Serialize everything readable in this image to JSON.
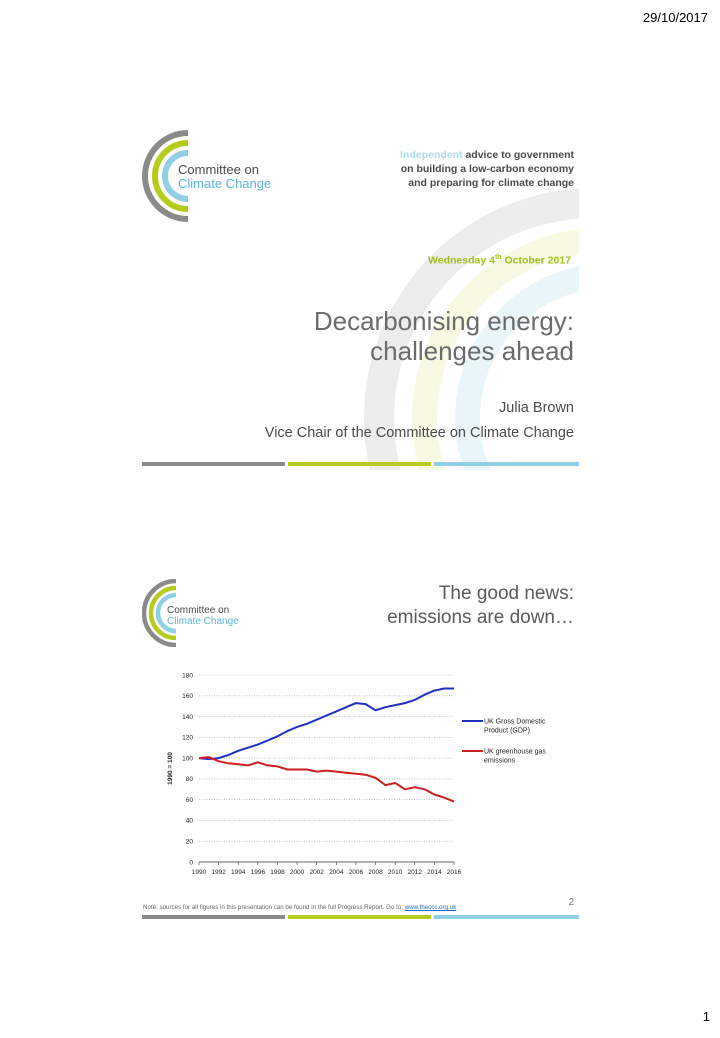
{
  "page": {
    "date": "29/10/2017",
    "number": "1"
  },
  "slide1": {
    "logo": {
      "line1": "Committee on",
      "line2": "Climate Change"
    },
    "tagline": {
      "accent": "Independent",
      "rest1": " advice to government",
      "line2": "on building a low-carbon economy",
      "line3": "and preparing for climate change"
    },
    "date": {
      "prefix": "Wednesday 4",
      "sup": "th",
      "suffix": " October 2017"
    },
    "title": {
      "line1": "Decarbonising energy:",
      "line2": "challenges ahead"
    },
    "presenter": "Julia Brown",
    "role": "Vice Chair of the Committee on Climate Change"
  },
  "slide2": {
    "logo": {
      "line1": "Committee on",
      "line2": "Climate Change"
    },
    "title": {
      "line1": "The good news:",
      "line2": "emissions are down…"
    },
    "slide_number": "2",
    "footnote": {
      "text": "Note: sources for all figures in this presentation can be found in the full Progress Report. Go to:",
      "link": "www.theccc.org.uk"
    }
  },
  "colors": {
    "grey": "#8a8a8a",
    "green": "#b5cc1c",
    "blue": "#8fd0e4",
    "gdp": "#1f2fbf",
    "emissions": "#cc1f1f"
  },
  "chart_data": {
    "type": "line",
    "ylabel": "1990 = 100",
    "xlabel": "",
    "ylim": [
      0,
      180
    ],
    "yticks": [
      0,
      20,
      40,
      60,
      80,
      100,
      120,
      140,
      160,
      180
    ],
    "xticks": [
      "1990",
      "1992",
      "1994",
      "1996",
      "1998",
      "2000",
      "2002",
      "2004",
      "2006",
      "2008",
      "2010",
      "2012",
      "2014",
      "2016"
    ],
    "x": [
      1990,
      1991,
      1992,
      1993,
      1994,
      1995,
      1996,
      1997,
      1998,
      1999,
      2000,
      2001,
      2002,
      2003,
      2004,
      2005,
      2006,
      2007,
      2008,
      2009,
      2010,
      2011,
      2012,
      2013,
      2014,
      2015,
      2016
    ],
    "grid": "horizontal dotted",
    "legend": "right",
    "series": [
      {
        "name": "UK Gross Domestic Product (GDP)",
        "legend_lines": [
          "UK Gross Domestic",
          "Product (GDP)"
        ],
        "color": "#1f2fbf",
        "values": [
          100,
          99,
          100,
          103,
          107,
          110,
          113,
          117,
          121,
          126,
          130,
          133,
          137,
          141,
          145,
          149,
          153,
          152,
          146,
          149,
          151,
          153,
          156,
          161,
          165,
          167,
          167
        ]
      },
      {
        "name": "UK greenhouse gas emissions",
        "legend_lines": [
          "UK greenhouse gas",
          "emissions"
        ],
        "color": "#cc1f1f",
        "values": [
          100,
          101,
          97,
          95,
          94,
          93,
          96,
          93,
          92,
          89,
          89,
          89,
          87,
          88,
          87,
          86,
          85,
          84,
          81,
          74,
          76,
          70,
          72,
          70,
          65,
          62,
          58
        ]
      }
    ]
  }
}
